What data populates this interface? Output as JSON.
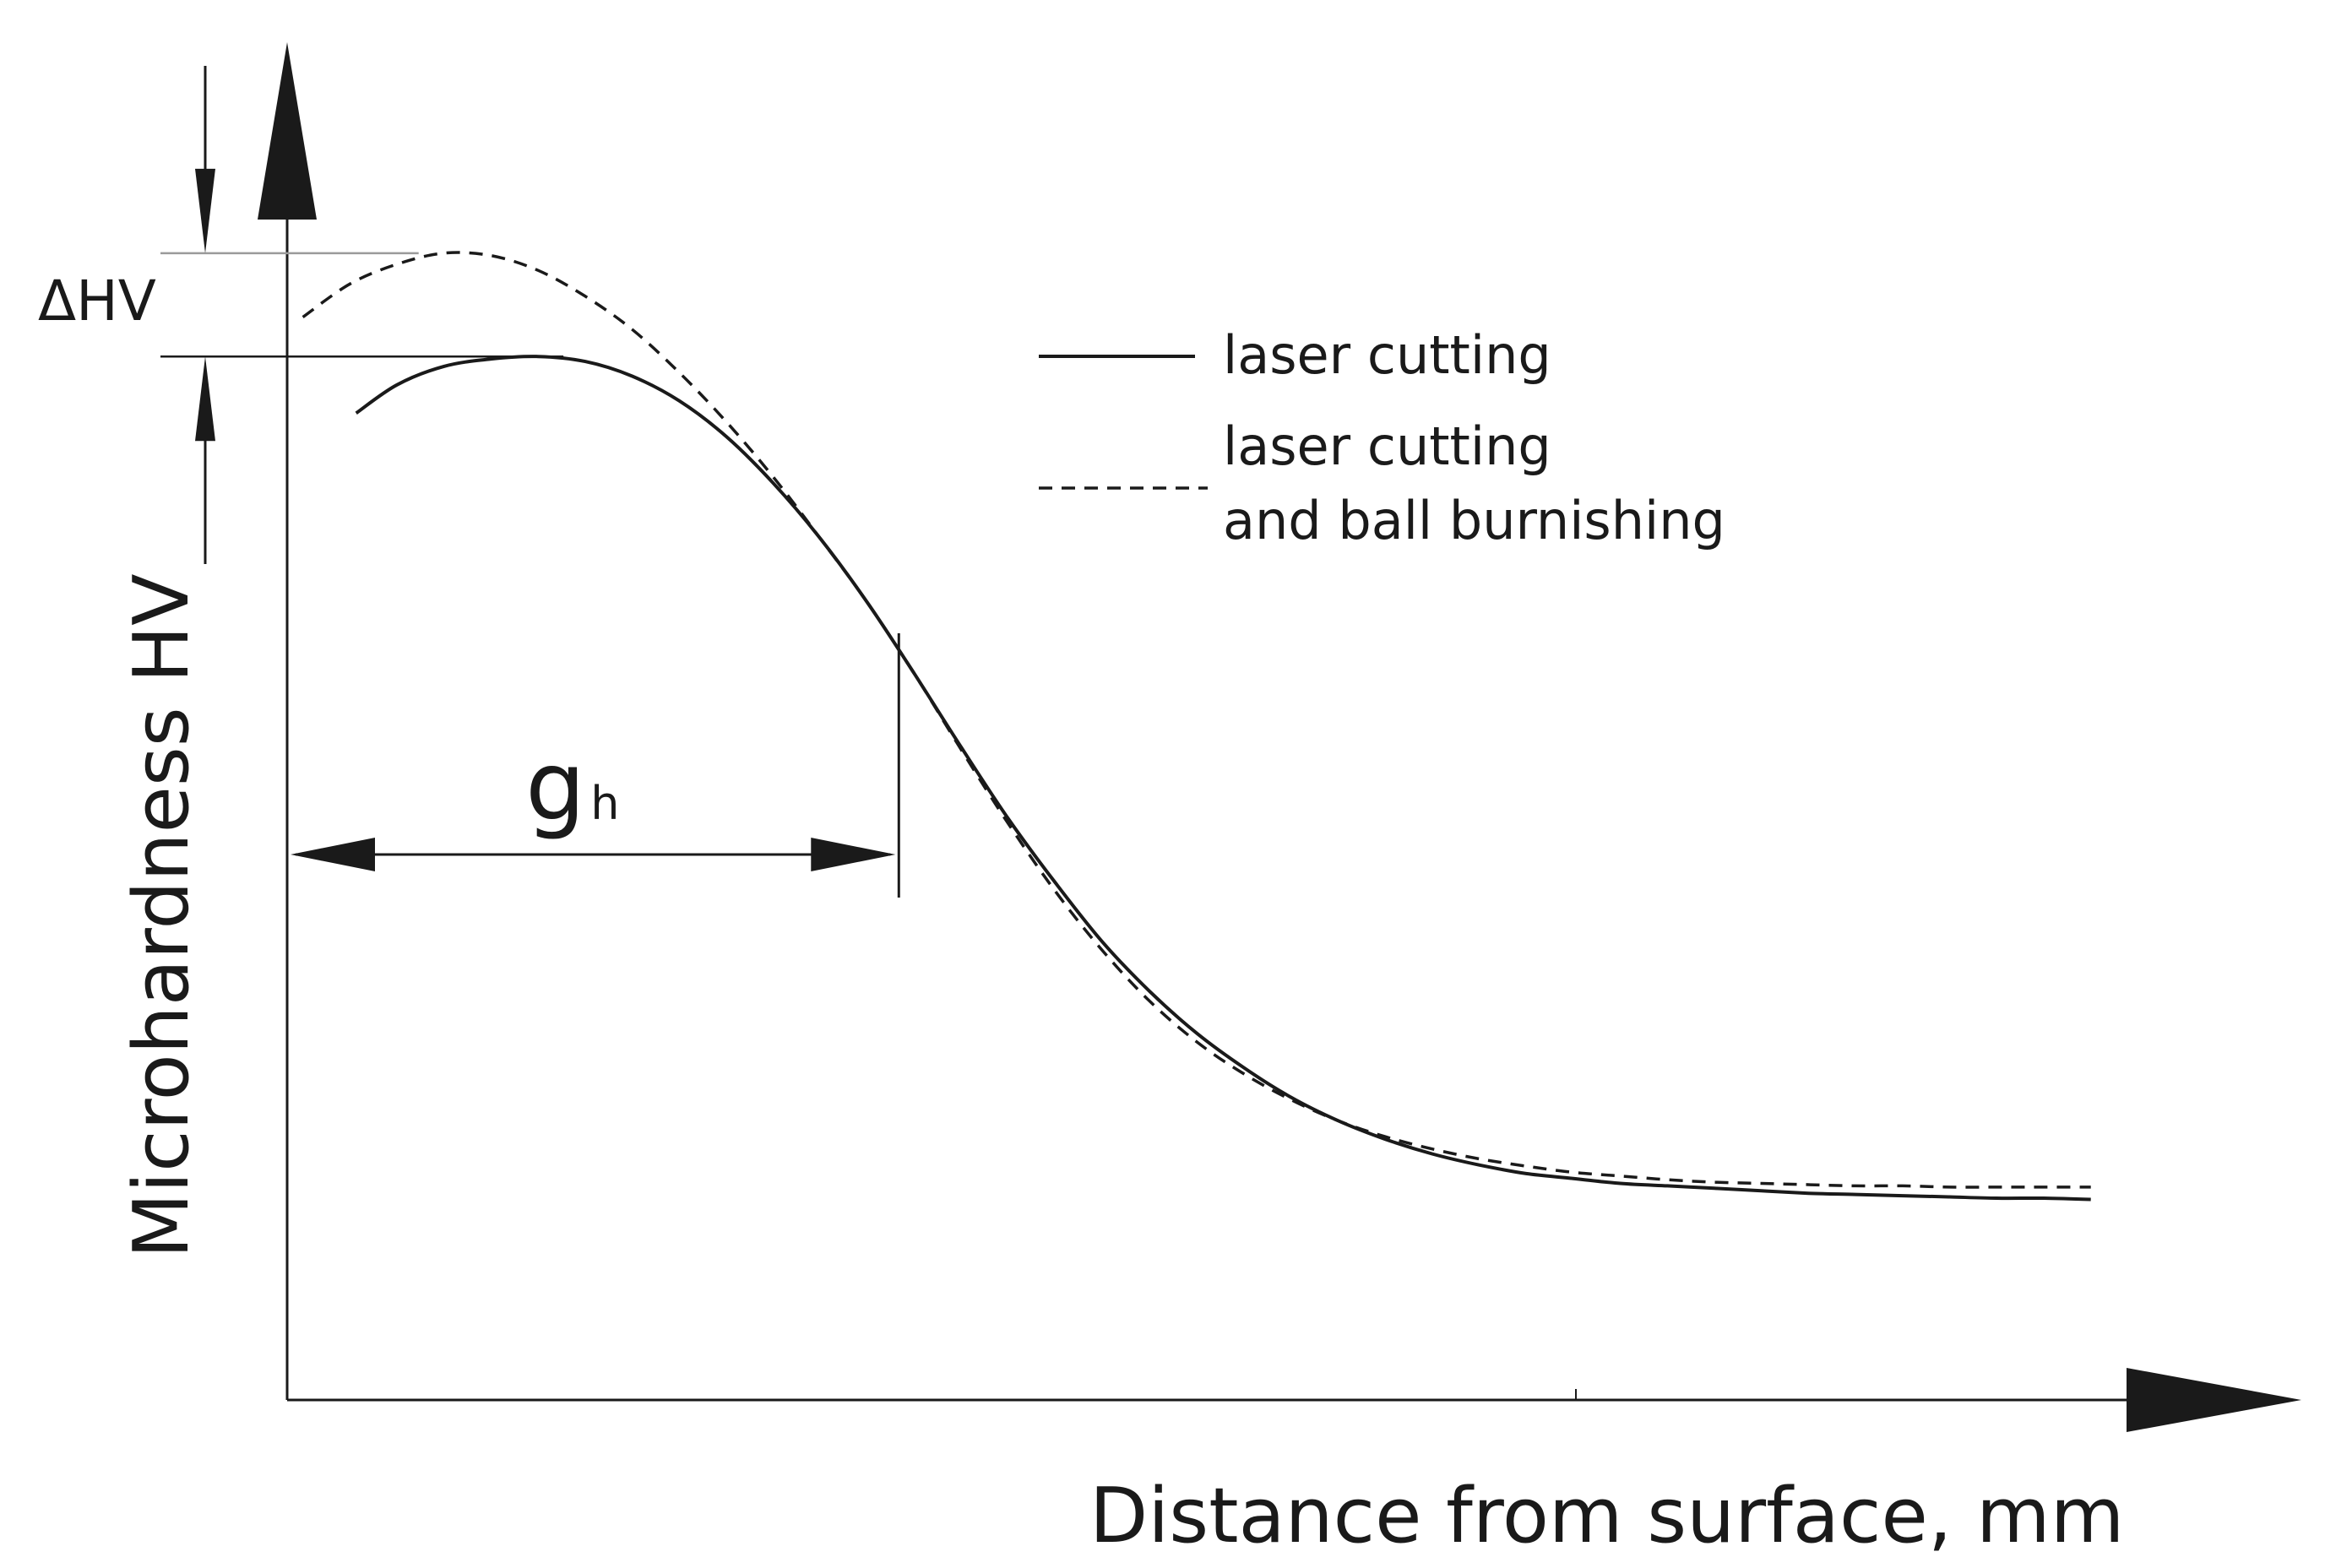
{
  "chart_data": {
    "type": "line",
    "title": "",
    "xlabel": "Distance from surface, mm",
    "ylabel": "Microhardness HV",
    "x_ticks_shown": false,
    "y_ticks_shown": false,
    "grid": false,
    "legend_placement": "top-right",
    "series": [
      {
        "name": "laser cutting",
        "style": "solid",
        "color": "#1a1a1a",
        "x": [
          0.22,
          0.35,
          0.5,
          0.65,
          0.8,
          0.95,
          1.1,
          1.25,
          1.4,
          1.55,
          1.7,
          1.85,
          2.0,
          2.15,
          2.3,
          2.45,
          2.6,
          2.75,
          2.9,
          3.05,
          3.2,
          3.35,
          3.5,
          3.65,
          3.8,
          3.95,
          4.1,
          4.25,
          4.4,
          4.55,
          4.7,
          4.85,
          5.0,
          5.15,
          5.3,
          5.45,
          5.6,
          5.75
        ],
        "y": [
          8.02,
          8.25,
          8.4,
          8.46,
          8.48,
          8.44,
          8.32,
          8.12,
          7.83,
          7.45,
          7.0,
          6.48,
          5.9,
          5.3,
          4.72,
          4.2,
          3.72,
          3.32,
          2.98,
          2.7,
          2.46,
          2.27,
          2.12,
          2.0,
          1.91,
          1.84,
          1.8,
          1.76,
          1.74,
          1.72,
          1.7,
          1.68,
          1.67,
          1.66,
          1.65,
          1.64,
          1.64,
          1.63
        ]
      },
      {
        "name": "laser cutting and ball burnishing",
        "style": "dashed",
        "color": "#1a1a1a",
        "x": [
          0.05,
          0.2,
          0.35,
          0.5,
          0.65,
          0.8,
          0.95,
          1.1,
          1.25,
          1.4,
          1.55,
          1.7,
          1.85,
          2.0,
          2.15,
          2.3,
          2.45,
          2.6,
          2.75,
          2.9,
          3.05,
          3.2,
          3.35,
          3.5,
          3.65,
          3.8,
          3.95,
          4.1,
          4.25,
          4.4,
          4.55,
          4.7,
          4.85,
          5.0,
          5.15,
          5.3,
          5.45,
          5.6,
          5.75
        ],
        "y": [
          8.8,
          9.07,
          9.23,
          9.32,
          9.3,
          9.18,
          8.97,
          8.7,
          8.35,
          7.95,
          7.5,
          7.0,
          6.48,
          5.9,
          5.28,
          4.68,
          4.13,
          3.65,
          3.24,
          2.91,
          2.65,
          2.44,
          2.27,
          2.14,
          2.04,
          1.96,
          1.9,
          1.85,
          1.82,
          1.79,
          1.77,
          1.76,
          1.75,
          1.74,
          1.74,
          1.73,
          1.73,
          1.73,
          1.73
        ]
      }
    ],
    "annotations": [
      {
        "text": "ΔHV",
        "meaning": "difference between peak microhardness of the two curves"
      },
      {
        "text": "g",
        "subscript": "h",
        "meaning": "depth of hardened layer"
      }
    ],
    "gh_depth_x": 1.95,
    "xlim": [
      0,
      6.3
    ],
    "ylim": [
      0,
      11
    ]
  }
}
